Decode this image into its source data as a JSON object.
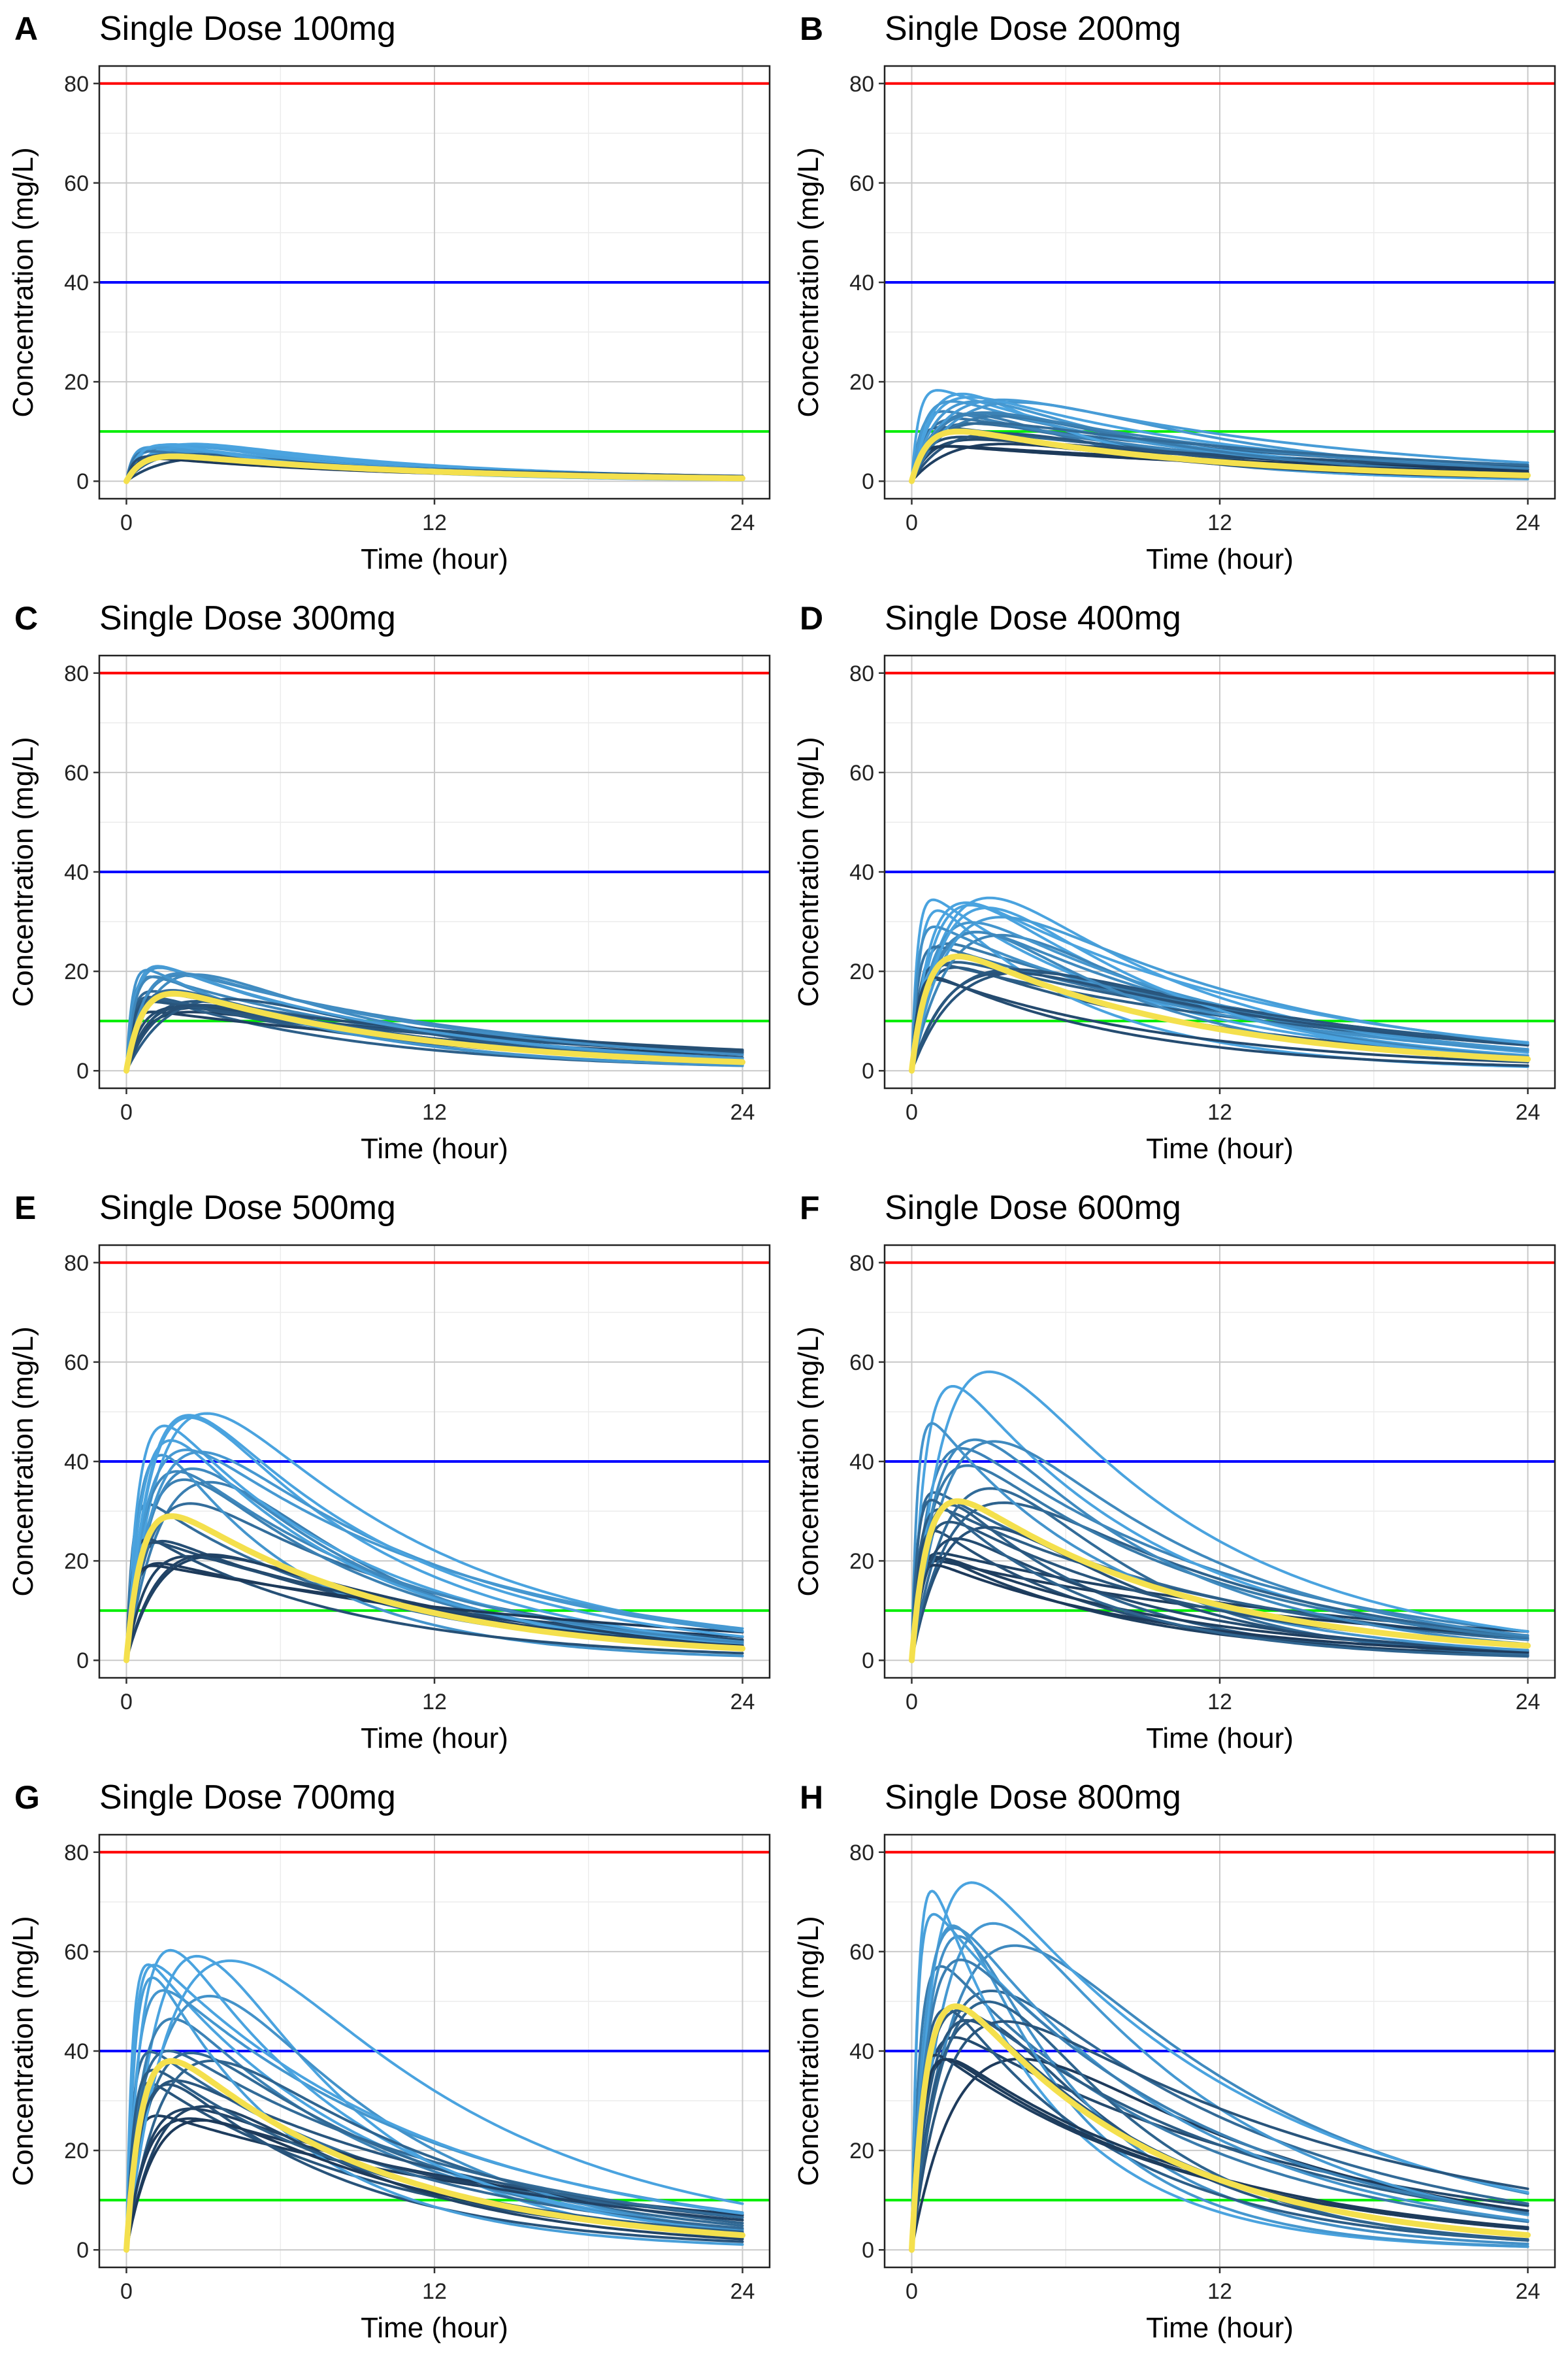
{
  "chart_data": {
    "type": "line",
    "x_axis": {
      "label": "Time (hour)",
      "range": [
        0,
        24
      ],
      "ticks": [
        0,
        12,
        24
      ]
    },
    "y_axis": {
      "label": "Concentration (mg/L)",
      "range": [
        0,
        80
      ],
      "ticks": [
        0,
        20,
        40,
        60,
        80
      ]
    },
    "grid": true,
    "reference_lines": [
      {
        "y": 80,
        "color": "#ff0000"
      },
      {
        "y": 40,
        "color": "#0000ff"
      },
      {
        "y": 10,
        "color": "#00ee00"
      }
    ],
    "colors": {
      "subject_light": "#4aa3df",
      "subject_dark": "#1d3a5a",
      "median": "#f4e04d"
    },
    "panels": [
      {
        "letter": "A",
        "title": "Single Dose 100mg",
        "median_peak": 5,
        "median_tmax": 1.0,
        "median_c24": 0.5,
        "min_peak": 4.5,
        "max_peak": 7.5,
        "min_c24": 0.2,
        "max_c24": 1.0
      },
      {
        "letter": "B",
        "title": "Single Dose 200mg",
        "median_peak": 10,
        "median_tmax": 1.0,
        "median_c24": 1.0,
        "min_peak": 7,
        "max_peak": 19,
        "min_c24": 0.3,
        "max_c24": 3.0
      },
      {
        "letter": "C",
        "title": "Single Dose 300mg",
        "median_peak": 15.5,
        "median_tmax": 1.0,
        "median_c24": 1.5,
        "min_peak": 11,
        "max_peak": 24,
        "min_c24": 0.5,
        "max_c24": 3.8
      },
      {
        "letter": "D",
        "title": "Single Dose 400mg",
        "median_peak": 23,
        "median_tmax": 1.0,
        "median_c24": 2.0,
        "min_peak": 16,
        "max_peak": 35,
        "min_c24": 0.5,
        "max_c24": 5.5
      },
      {
        "letter": "E",
        "title": "Single Dose 500mg",
        "median_peak": 29,
        "median_tmax": 1.0,
        "median_c24": 2.0,
        "min_peak": 19,
        "max_peak": 50,
        "min_c24": 0.5,
        "max_c24": 5.5
      },
      {
        "letter": "F",
        "title": "Single Dose 600mg",
        "median_peak": 32,
        "median_tmax": 1.0,
        "median_c24": 2.5,
        "min_peak": 19,
        "max_peak": 59,
        "min_c24": 0.5,
        "max_c24": 5.5
      },
      {
        "letter": "G",
        "title": "Single Dose 700mg",
        "median_peak": 38,
        "median_tmax": 1.0,
        "median_c24": 2.5,
        "min_peak": 26,
        "max_peak": 62,
        "min_c24": 0.5,
        "max_c24": 7.0
      },
      {
        "letter": "H",
        "title": "Single Dose 800mg",
        "median_peak": 49,
        "median_tmax": 1.0,
        "median_c24": 2.5,
        "min_peak": 38,
        "max_peak": 75,
        "min_c24": 0.5,
        "max_c24": 11.0
      }
    ]
  }
}
